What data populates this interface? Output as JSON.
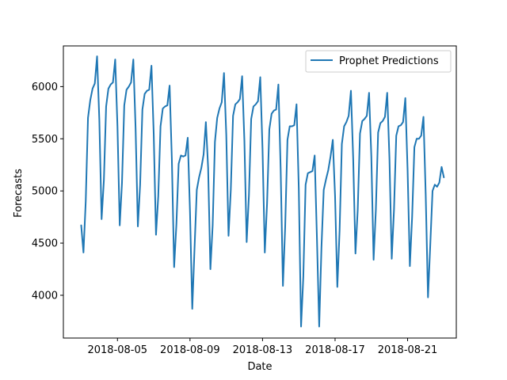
{
  "chart_data": {
    "type": "line",
    "title": "",
    "xlabel": "Date",
    "ylabel": "Forecasts",
    "x_tick_labels": [
      "2018-08-05",
      "2018-08-09",
      "2018-08-13",
      "2018-08-17",
      "2018-08-21"
    ],
    "y_ticks": [
      4000,
      4500,
      5000,
      5500,
      6000
    ],
    "x_start": "2018-08-03",
    "ylim": [
      3590,
      6390
    ],
    "grid": false,
    "legend_position": "upper right",
    "series": [
      {
        "name": "Prophet Predictions",
        "color": "#1f77b4",
        "hours_per_point": 3,
        "values": [
          4670,
          4410,
          4900,
          5700,
          5870,
          5980,
          6030,
          6290,
          5680,
          4730,
          5100,
          5810,
          5980,
          6020,
          6040,
          6260,
          5620,
          4670,
          5080,
          5820,
          5970,
          6000,
          6040,
          6260,
          5600,
          4660,
          5060,
          5780,
          5930,
          5960,
          5970,
          6200,
          5540,
          4580,
          4950,
          5620,
          5790,
          5810,
          5820,
          6010,
          5300,
          4270,
          4680,
          5260,
          5340,
          5330,
          5340,
          5510,
          4800,
          3870,
          4450,
          5010,
          5130,
          5220,
          5350,
          5660,
          5220,
          4250,
          4670,
          5470,
          5700,
          5790,
          5850,
          6130,
          5540,
          4570,
          5010,
          5720,
          5830,
          5850,
          5880,
          6100,
          5480,
          4510,
          4960,
          5690,
          5810,
          5830,
          5860,
          6090,
          5400,
          4410,
          4880,
          5590,
          5740,
          5770,
          5780,
          6020,
          5210,
          4090,
          4660,
          5490,
          5620,
          5620,
          5630,
          5830,
          5020,
          3700,
          4180,
          5060,
          5170,
          5180,
          5190,
          5340,
          4550,
          3700,
          4460,
          5010,
          5110,
          5200,
          5330,
          5490,
          4950,
          4080,
          4620,
          5450,
          5620,
          5660,
          5720,
          5960,
          5310,
          4400,
          4820,
          5550,
          5670,
          5690,
          5720,
          5940,
          5330,
          4340,
          4820,
          5560,
          5650,
          5670,
          5710,
          5940,
          5310,
          4350,
          4820,
          5530,
          5620,
          5630,
          5660,
          5890,
          5200,
          4280,
          4750,
          5420,
          5500,
          5500,
          5530,
          5710,
          4960,
          3980,
          4480,
          5000,
          5060,
          5040,
          5080,
          5230,
          5130
        ]
      }
    ]
  }
}
